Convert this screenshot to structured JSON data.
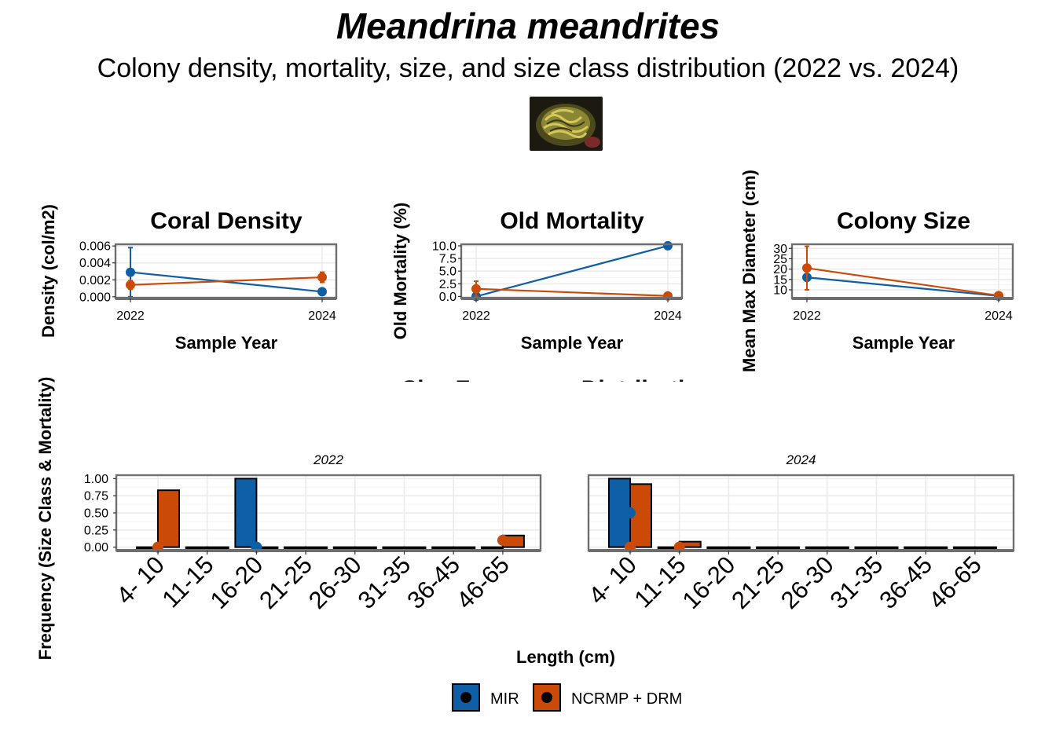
{
  "title": "Meandrina meandrites",
  "subtitle": "Colony density, mortality, size, and size class distribution (2022 vs. 2024)",
  "photo": "coral-colony-photo",
  "colors": {
    "MIR": "#0f5fa6",
    "NCRMP + DRM": "#cc4a08",
    "grid": "#ebebeb",
    "border": "#6e6e6e"
  },
  "chart_data": [
    {
      "type": "line",
      "title": "Coral Density",
      "xlabel": "Sample Year",
      "ylabel": "Density (col/m2)",
      "x": [
        2022,
        2024
      ],
      "x_ticks": [
        "2022",
        "2024"
      ],
      "y_ticks": [
        "0.000",
        "0.002",
        "0.004",
        "0.006"
      ],
      "ylim": [
        -0.0002,
        0.0062
      ],
      "grid": true,
      "series": [
        {
          "name": "MIR",
          "values": [
            0.0029,
            0.0006
          ],
          "error": [
            [
              0.0,
              0.0058
            ],
            [
              0.0006,
              0.0006
            ]
          ]
        },
        {
          "name": "NCRMP + DRM",
          "values": [
            0.0014,
            0.0023
          ],
          "error": [
            [
              0.0009,
              0.0019
            ],
            [
              0.0017,
              0.0029
            ]
          ]
        }
      ]
    },
    {
      "type": "line",
      "title": "Old Mortality",
      "xlabel": "Sample Year",
      "ylabel": "Old Mortality (%)",
      "x": [
        2022,
        2024
      ],
      "x_ticks": [
        "2022",
        "2024"
      ],
      "y_ticks": [
        "0.0",
        "2.5",
        "5.0",
        "7.5",
        "10.0"
      ],
      "ylim": [
        -0.4,
        10.3
      ],
      "grid": true,
      "series": [
        {
          "name": "MIR",
          "values": [
            0.0,
            10.0
          ],
          "error": [
            [
              0.0,
              0.0
            ],
            [
              10.0,
              10.0
            ]
          ]
        },
        {
          "name": "NCRMP + DRM",
          "values": [
            1.5,
            0.1
          ],
          "error": [
            [
              0.0,
              3.0
            ],
            [
              0.1,
              0.1
            ]
          ]
        }
      ]
    },
    {
      "type": "line",
      "title": "Colony Size",
      "xlabel": "Sample Year",
      "ylabel": "Mean Max Diameter (cm)",
      "x": [
        2022,
        2024
      ],
      "x_ticks": [
        "2022",
        "2024"
      ],
      "y_ticks": [
        "10",
        "15",
        "20",
        "25",
        "30"
      ],
      "ylim": [
        5.8,
        32
      ],
      "grid": true,
      "series": [
        {
          "name": "MIR",
          "values": [
            16,
            7
          ],
          "error": [
            [
              16,
              16
            ],
            [
              7,
              7
            ]
          ]
        },
        {
          "name": "NCRMP + DRM",
          "values": [
            20.5,
            7.2
          ],
          "error": [
            [
              10,
              31
            ],
            [
              7.2,
              7.2
            ]
          ]
        }
      ]
    },
    {
      "type": "bar",
      "title": "Size Frequency Distributions",
      "xlabel": "Length (cm)",
      "ylabel": "Frequency (Size Class & Mortality)",
      "categories": [
        "4- 10",
        "11-15",
        "16-20",
        "21-25",
        "26-30",
        "31-35",
        "36-45",
        "46-65"
      ],
      "y_ticks": [
        "0.00",
        "0.25",
        "0.50",
        "0.75",
        "1.00"
      ],
      "ylim": [
        -0.05,
        1.05
      ],
      "grid": true,
      "legend": "bottom",
      "facets": [
        {
          "label": "2022",
          "series": [
            {
              "name": "MIR",
              "values": [
                0,
                0,
                1.0,
                0,
                0,
                0,
                0,
                0
              ],
              "mortality": [
                null,
                null,
                0.0,
                null,
                null,
                null,
                null,
                null
              ]
            },
            {
              "name": "NCRMP + DRM",
              "values": [
                0.83,
                0,
                0,
                0,
                0,
                0,
                0,
                0.17
              ],
              "mortality": [
                0.0,
                null,
                null,
                null,
                null,
                null,
                null,
                0.1
              ]
            }
          ]
        },
        {
          "label": "2024",
          "series": [
            {
              "name": "MIR",
              "values": [
                1.0,
                0,
                0,
                0,
                0,
                0,
                0,
                0
              ],
              "mortality": [
                0.5,
                null,
                null,
                null,
                null,
                null,
                null,
                null
              ]
            },
            {
              "name": "NCRMP + DRM",
              "values": [
                0.92,
                0.08,
                0,
                0,
                0,
                0,
                0,
                0
              ],
              "mortality": [
                0.0,
                0.0,
                null,
                null,
                null,
                null,
                null,
                null
              ]
            }
          ]
        }
      ]
    }
  ],
  "legend": {
    "items": [
      "MIR",
      "NCRMP + DRM"
    ]
  }
}
